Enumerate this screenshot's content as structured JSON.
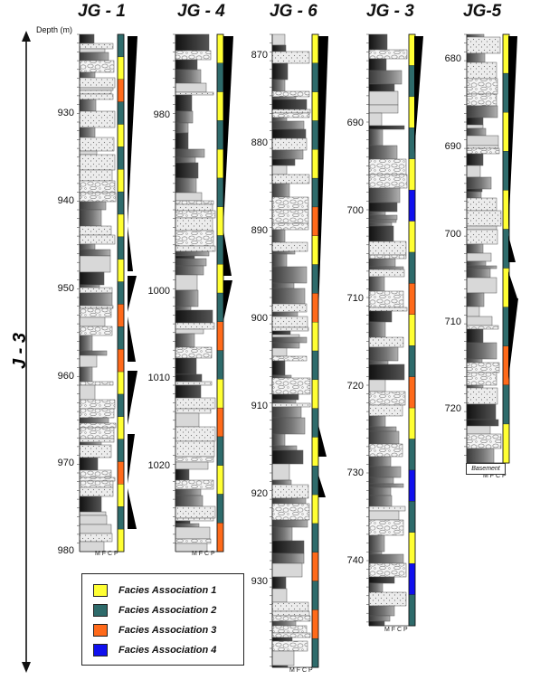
{
  "sequence_label": "J - 3",
  "depth_header": "Depth (m)",
  "grain_scale": [
    "M",
    "F",
    "C",
    "P"
  ],
  "basement_label": "Basement",
  "colors": {
    "fa1": "#ffff33",
    "fa2": "#2e6b6b",
    "fa3": "#ff6a1a",
    "fa4": "#1010ee"
  },
  "legend": [
    {
      "label": "Facies Association 1",
      "color": "#ffff33"
    },
    {
      "label": "Facies Association 2",
      "color": "#2e6b6b"
    },
    {
      "label": "Facies Association 3",
      "color": "#ff6a1a"
    },
    {
      "label": "Facies Association 4",
      "color": "#1010ee"
    }
  ],
  "wells": [
    {
      "name": "JG - 1",
      "depth_labels": [
        "930",
        "940",
        "950",
        "960",
        "970",
        "980"
      ],
      "facies": [
        "fa2",
        "fa1",
        "fa3",
        "fa2",
        "fa1",
        "fa2",
        "fa1",
        "fa2",
        "fa1",
        "fa2",
        "fa1",
        "fa2",
        "fa3",
        "fa2",
        "fa3",
        "fa1",
        "fa2",
        "fa1",
        "fa2",
        "fa3",
        "fa1",
        "fa2",
        "fa1"
      ]
    },
    {
      "name": "JG - 4",
      "depth_labels": [
        "980",
        "1000",
        "1010",
        "1020"
      ],
      "facies": [
        "fa1",
        "fa2",
        "fa1",
        "fa2",
        "fa1",
        "fa2",
        "fa1",
        "fa2",
        "fa1",
        "fa2",
        "fa3",
        "fa2",
        "fa1",
        "fa3",
        "fa2",
        "fa1",
        "fa2",
        "fa3"
      ]
    },
    {
      "name": "JG - 6",
      "depth_labels": [
        "870",
        "880",
        "890",
        "900",
        "910",
        "920",
        "930"
      ],
      "facies": [
        "fa1",
        "fa2",
        "fa1",
        "fa2",
        "fa1",
        "fa2",
        "fa3",
        "fa1",
        "fa2",
        "fa3",
        "fa1",
        "fa2",
        "fa1",
        "fa2",
        "fa1",
        "fa2",
        "fa1",
        "fa2",
        "fa3",
        "fa2",
        "fa3",
        "fa2"
      ]
    },
    {
      "name": "JG - 3",
      "depth_labels": [
        "690",
        "700",
        "710",
        "720",
        "730",
        "740"
      ],
      "facies": [
        "fa1",
        "fa2",
        "fa1",
        "fa2",
        "fa1",
        "fa4",
        "fa1",
        "fa2",
        "fa3",
        "fa1",
        "fa2",
        "fa3",
        "fa1",
        "fa2",
        "fa4",
        "fa2",
        "fa1",
        "fa4",
        "fa2"
      ]
    },
    {
      "name": "JG-5",
      "depth_labels": [
        "680",
        "690",
        "700",
        "710",
        "720"
      ],
      "facies": [
        "fa1",
        "fa2",
        "fa1",
        "fa2",
        "fa1",
        "fa2",
        "fa1",
        "fa2",
        "fa3",
        "fa2",
        "fa1"
      ]
    }
  ]
}
